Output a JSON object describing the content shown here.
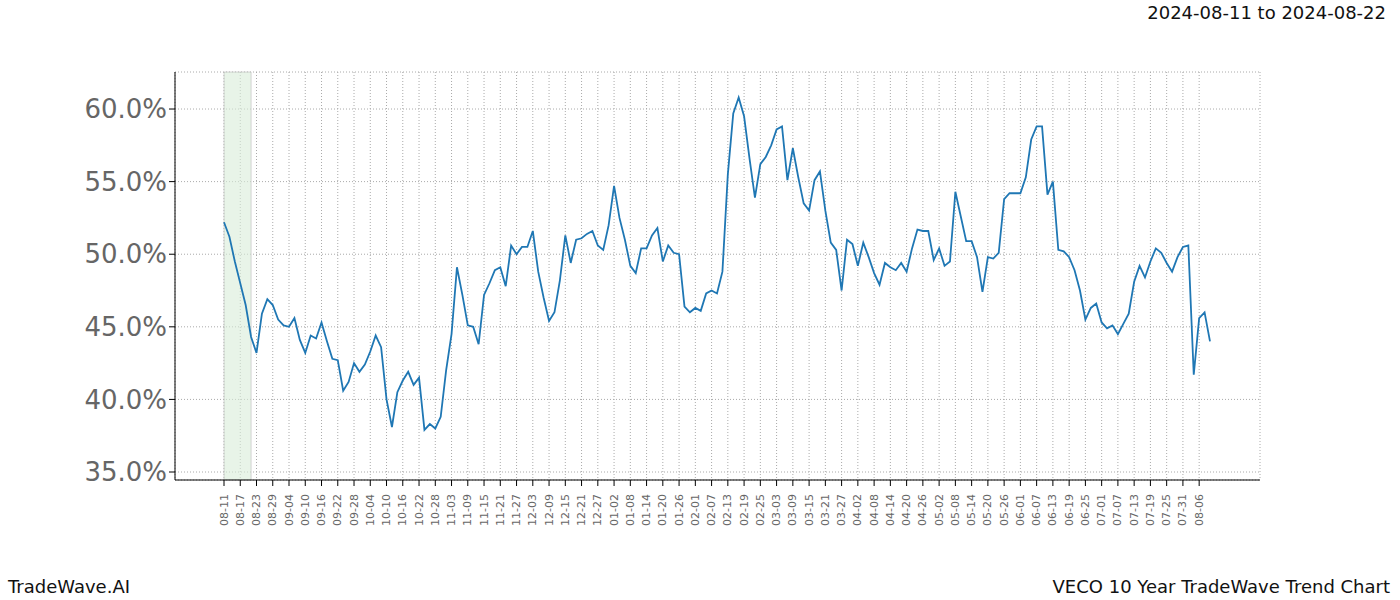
{
  "chart_data": {
    "type": "line",
    "title": "VECO 10 Year TradeWave Trend Chart",
    "subtitle": "2024-08-11 to 2024-08-22",
    "annotations": [
      "TradeWave.AI"
    ],
    "categories": [
      "08-11",
      null,
      null,
      "08-17",
      null,
      null,
      "08-23",
      null,
      null,
      "08-29",
      null,
      null,
      "09-04",
      null,
      null,
      "09-10",
      null,
      null,
      "09-16",
      null,
      null,
      "09-22",
      null,
      null,
      "09-28",
      null,
      null,
      "10-04",
      null,
      null,
      "10-10",
      null,
      null,
      "10-16",
      null,
      null,
      "10-22",
      null,
      null,
      "10-28",
      null,
      null,
      "11-03",
      null,
      null,
      "11-09",
      null,
      null,
      "11-15",
      null,
      null,
      "11-21",
      null,
      null,
      "11-27",
      null,
      null,
      "12-03",
      null,
      null,
      "12-09",
      null,
      null,
      "12-15",
      null,
      null,
      "12-21",
      null,
      null,
      "12-27",
      null,
      null,
      "01-02",
      null,
      null,
      "01-08",
      null,
      null,
      "01-14",
      null,
      null,
      "01-20",
      null,
      null,
      "01-26",
      null,
      null,
      "02-01",
      null,
      null,
      "02-07",
      null,
      null,
      "02-13",
      null,
      null,
      "02-19",
      null,
      null,
      "02-25",
      null,
      null,
      "03-03",
      null,
      null,
      "03-09",
      null,
      null,
      "03-15",
      null,
      null,
      "03-21",
      null,
      null,
      "03-27",
      null,
      null,
      "04-02",
      null,
      null,
      "04-08",
      null,
      null,
      "04-14",
      null,
      null,
      "04-20",
      null,
      null,
      "04-26",
      null,
      null,
      "05-02",
      null,
      null,
      "05-08",
      null,
      null,
      "05-14",
      null,
      null,
      "05-20",
      null,
      null,
      "05-26",
      null,
      null,
      "06-01",
      null,
      null,
      "06-07",
      null,
      null,
      "06-13",
      null,
      null,
      "06-19",
      null,
      null,
      "06-25",
      null,
      null,
      "07-01",
      null,
      null,
      "07-07",
      null,
      null,
      "07-13",
      null,
      null,
      "07-19",
      null,
      null,
      "07-25",
      null,
      null,
      "07-31",
      null,
      null,
      "08-06",
      null,
      null
    ],
    "values": [
      52.2,
      51.2,
      49.5,
      48,
      46.5,
      44.3,
      43.2,
      45.9,
      46.9,
      46.5,
      45.5,
      45.1,
      45,
      45.6,
      44.1,
      43.2,
      44.4,
      44.2,
      45.3,
      44,
      42.8,
      42.7,
      40.6,
      41.2,
      42.5,
      41.9,
      42.4,
      43.3,
      44.4,
      43.6,
      40,
      38.1,
      40.5,
      41.3,
      41.9,
      41,
      41.5,
      37.9,
      38.3,
      38,
      38.8,
      42,
      44.5,
      49.1,
      47.2,
      45.1,
      45,
      43.8,
      47.2,
      48,
      48.9,
      49.1,
      47.8,
      50.6,
      50,
      50.5,
      50.5,
      51.6,
      48.8,
      47,
      45.4,
      46,
      48.2,
      51.3,
      49.4,
      51,
      51.1,
      51.4,
      51.6,
      50.6,
      50.3,
      52,
      54.7,
      52.5,
      51,
      49.2,
      48.7,
      50.4,
      50.4,
      51.3,
      51.8,
      49.5,
      50.6,
      50.1,
      50,
      46.4,
      46,
      46.3,
      46.1,
      47.3,
      47.5,
      47.3,
      48.8,
      55.5,
      59.7,
      60.8,
      59.5,
      56.6,
      53.9,
      56.2,
      56.7,
      57.5,
      58.6,
      58.8,
      55.1,
      57.3,
      55.3,
      53.5,
      53,
      55.1,
      55.7,
      53,
      50.8,
      50.3,
      47.5,
      51,
      50.7,
      49.2,
      50.8,
      49.8,
      48.7,
      47.9,
      49.4,
      49.1,
      48.9,
      49.4,
      48.8,
      50.4,
      51.7,
      51.6,
      51.6,
      49.6,
      50.4,
      49.2,
      49.5,
      54.3,
      52.6,
      50.9,
      50.9,
      49.8,
      47.4,
      49.8,
      49.7,
      50.1,
      53.8,
      54.2,
      54.2,
      54.2,
      55.3,
      57.9,
      58.8,
      58.8,
      54.1,
      55,
      50.3,
      50.2,
      49.8,
      48.9,
      47.5,
      45.5,
      46.3,
      46.6,
      45.3,
      44.9,
      45.1,
      44.5,
      45.2,
      45.9,
      48.1,
      49.2,
      48.4,
      49.5,
      50.4,
      50.1,
      49.4,
      48.8,
      49.8,
      50.5,
      50.6,
      41.7,
      45.6,
      46,
      44
    ],
    "color": "#1f77b4",
    "ylim": [
      34.45,
      62.55
    ],
    "yticks": [
      {
        "value": 35,
        "label": "35.0%"
      },
      {
        "value": 40,
        "label": "40.0%"
      },
      {
        "value": 45,
        "label": "45.0%"
      },
      {
        "value": 50,
        "label": "50.0%"
      },
      {
        "value": 55,
        "label": "55.0%"
      },
      {
        "value": 60,
        "label": "60.0%"
      }
    ],
    "grid": true
  }
}
